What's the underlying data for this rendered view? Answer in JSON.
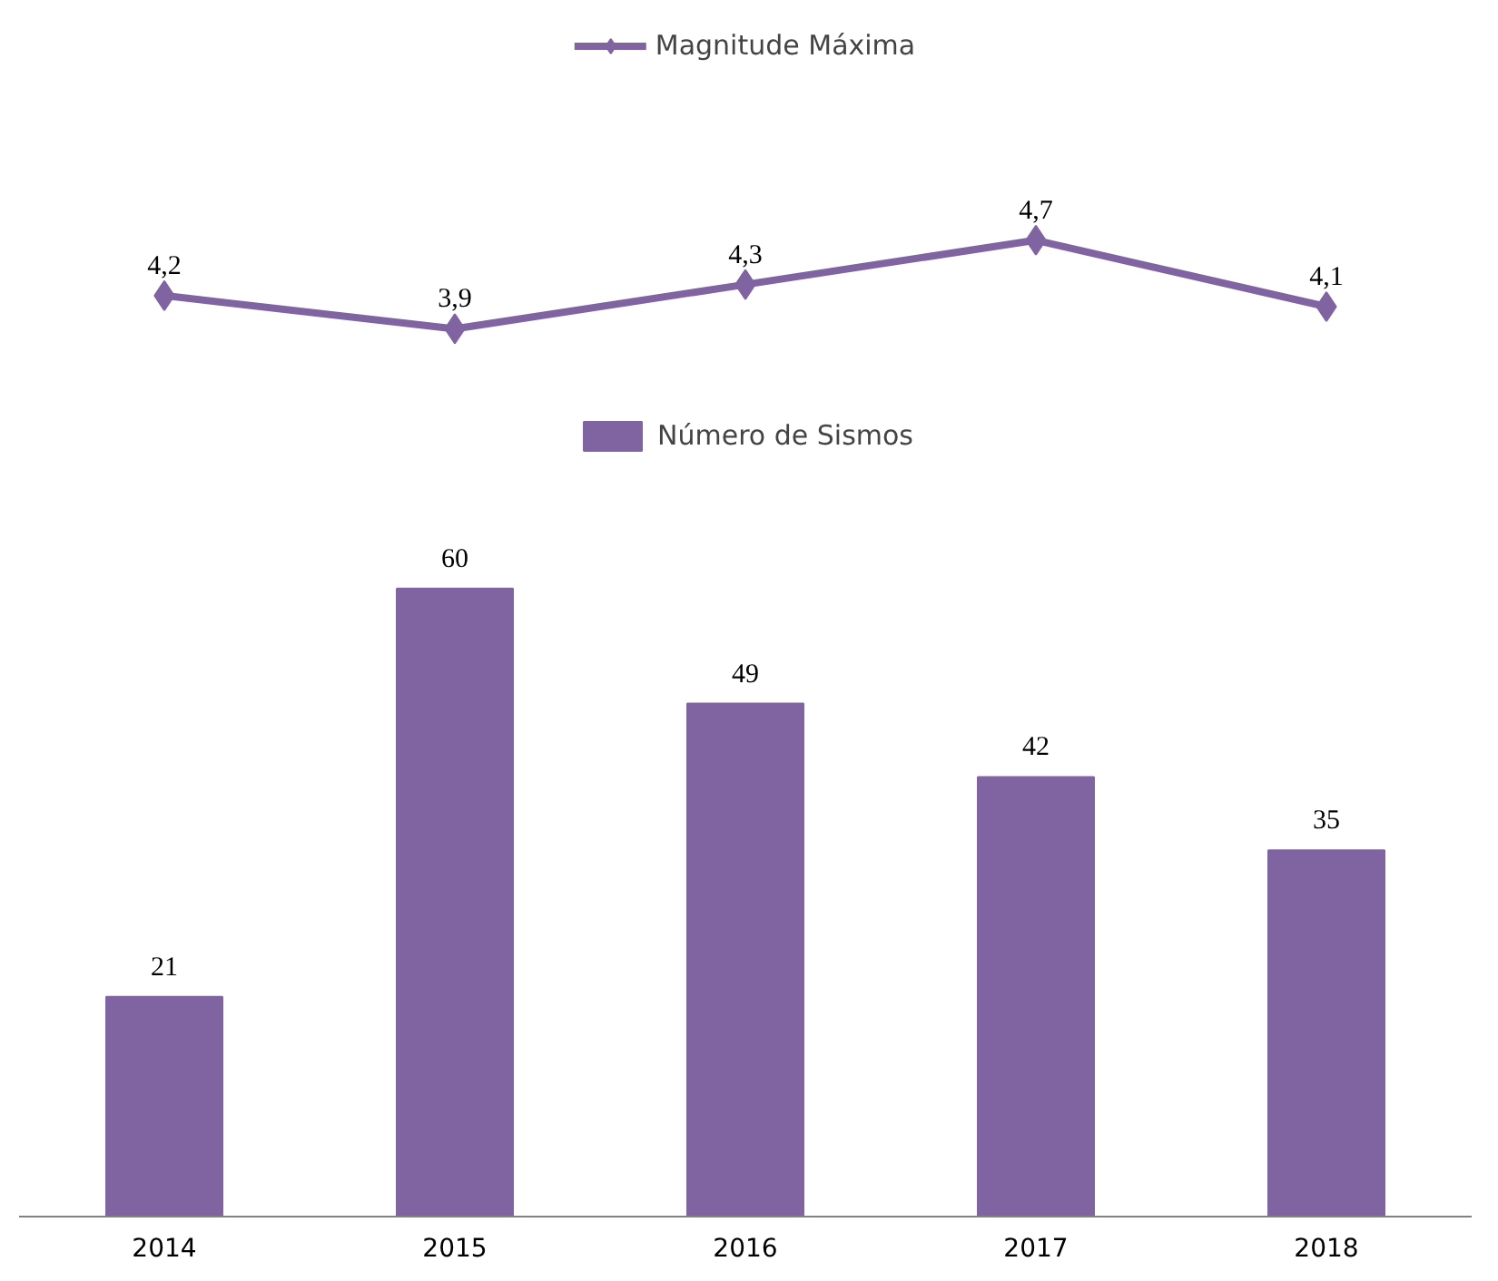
{
  "chart_data": [
    {
      "type": "line",
      "categories": [
        null,
        null,
        null,
        null,
        null
      ],
      "legend": "top",
      "marker": "diamond",
      "line_style": "solid",
      "series": [
        {
          "name": "Magnitude Máxima",
          "color": "#8064a2",
          "values": [
            4.2,
            3.9,
            4.3,
            4.7,
            4.1
          ],
          "value_labels": [
            "4,2",
            "3,9",
            "4,3",
            "4,7",
            "4,1"
          ]
        }
      ]
    },
    {
      "type": "bar",
      "categories": [
        "2014",
        "2015",
        "2016",
        "2017",
        "2018"
      ],
      "legend": "top",
      "data_labels": true,
      "series": [
        {
          "name": "Número de Sismos",
          "color": "#8064a2",
          "values": [
            21,
            60,
            49,
            42,
            35
          ]
        }
      ]
    }
  ]
}
